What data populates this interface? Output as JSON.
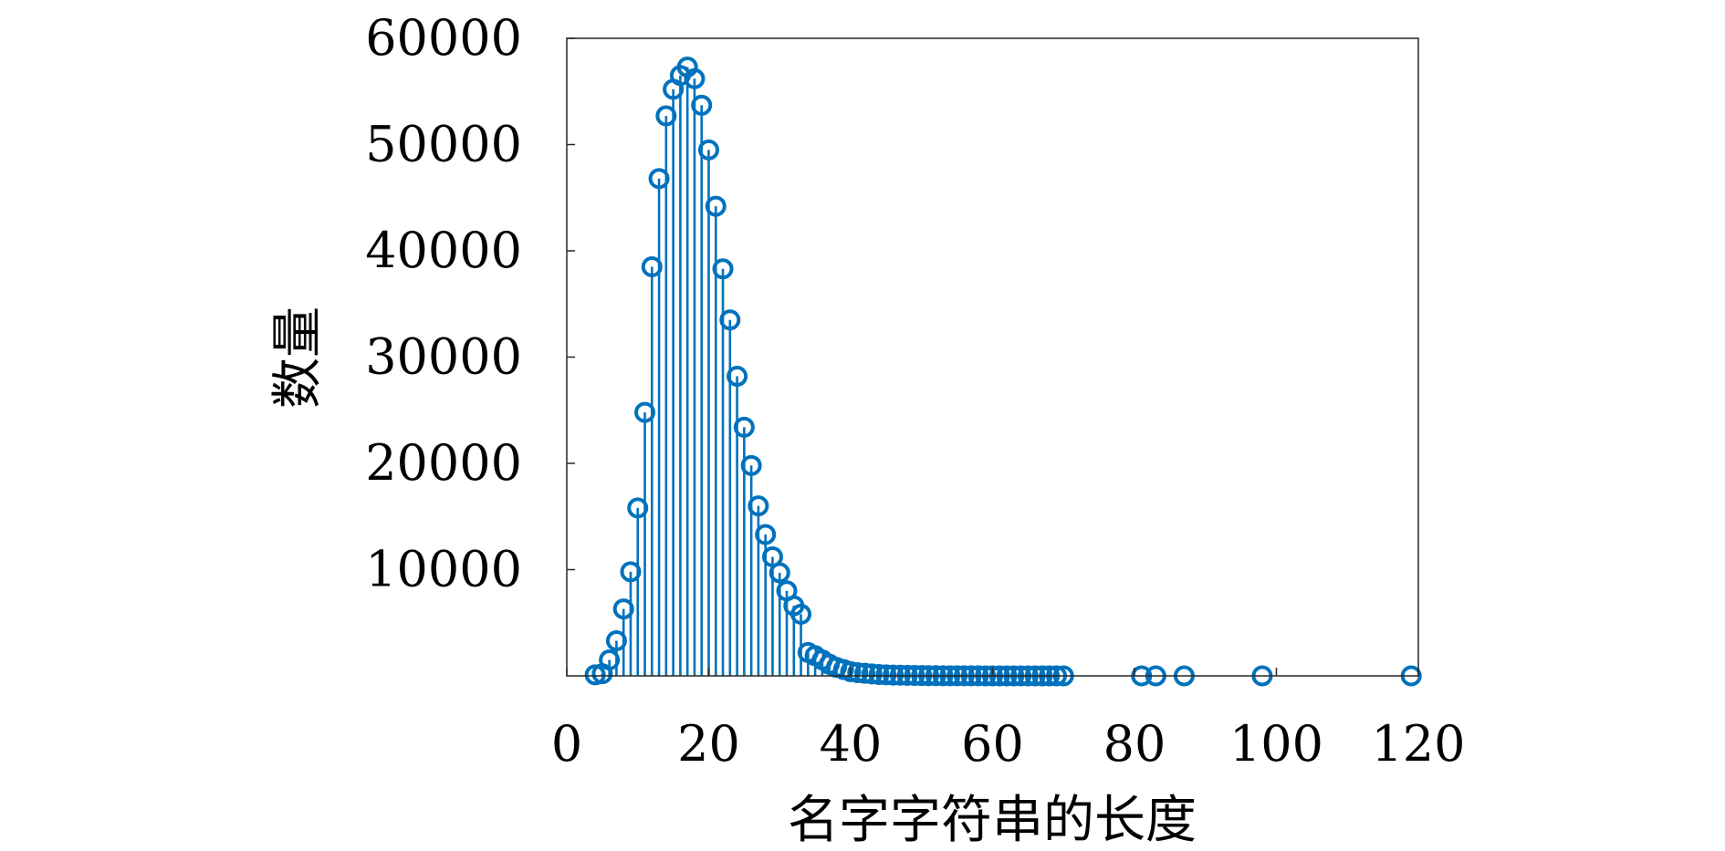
{
  "chart_data": {
    "type": "stem",
    "xlabel": "名字字符串的长度",
    "ylabel": "数量",
    "xlim": [
      0,
      120
    ],
    "ylim": [
      0,
      60000
    ],
    "x_ticks": [
      "0",
      "20",
      "40",
      "60",
      "80",
      "100",
      "120"
    ],
    "y_ticks": [
      "10000",
      "20000",
      "30000",
      "40000",
      "50000",
      "60000"
    ],
    "series_color": "#0072BD",
    "grid": false,
    "points": [
      [
        4,
        100
      ],
      [
        5,
        200
      ],
      [
        6,
        1500
      ],
      [
        7,
        3300
      ],
      [
        8,
        6300
      ],
      [
        9,
        9800
      ],
      [
        10,
        15800
      ],
      [
        11,
        24800
      ],
      [
        12,
        38500
      ],
      [
        13,
        46800
      ],
      [
        14,
        52700
      ],
      [
        15,
        55200
      ],
      [
        16,
        56500
      ],
      [
        17,
        57300
      ],
      [
        18,
        56200
      ],
      [
        19,
        53700
      ],
      [
        20,
        49500
      ],
      [
        21,
        44200
      ],
      [
        22,
        38300
      ],
      [
        23,
        33500
      ],
      [
        24,
        28200
      ],
      [
        25,
        23400
      ],
      [
        26,
        19800
      ],
      [
        27,
        16000
      ],
      [
        28,
        13300
      ],
      [
        29,
        11200
      ],
      [
        30,
        9700
      ],
      [
        31,
        8000
      ],
      [
        32,
        6600
      ],
      [
        33,
        5800
      ],
      [
        34,
        2200
      ],
      [
        35,
        1900
      ],
      [
        36,
        1500
      ],
      [
        37,
        1100
      ],
      [
        38,
        800
      ],
      [
        39,
        600
      ],
      [
        40,
        400
      ],
      [
        41,
        300
      ],
      [
        42,
        250
      ],
      [
        43,
        180
      ],
      [
        44,
        130
      ],
      [
        45,
        100
      ],
      [
        46,
        80
      ],
      [
        47,
        60
      ],
      [
        48,
        50
      ],
      [
        49,
        40
      ],
      [
        50,
        30
      ],
      [
        51,
        25
      ],
      [
        52,
        20
      ],
      [
        53,
        15
      ],
      [
        54,
        12
      ],
      [
        55,
        10
      ],
      [
        56,
        8
      ],
      [
        57,
        7
      ],
      [
        58,
        6
      ],
      [
        59,
        5
      ],
      [
        60,
        5
      ],
      [
        61,
        4
      ],
      [
        62,
        4
      ],
      [
        63,
        3
      ],
      [
        64,
        3
      ],
      [
        65,
        3
      ],
      [
        66,
        2
      ],
      [
        67,
        2
      ],
      [
        68,
        2
      ],
      [
        69,
        2
      ],
      [
        70,
        2
      ],
      [
        81,
        1
      ],
      [
        83,
        1
      ],
      [
        87,
        1
      ],
      [
        98,
        1
      ],
      [
        119,
        1
      ]
    ]
  }
}
